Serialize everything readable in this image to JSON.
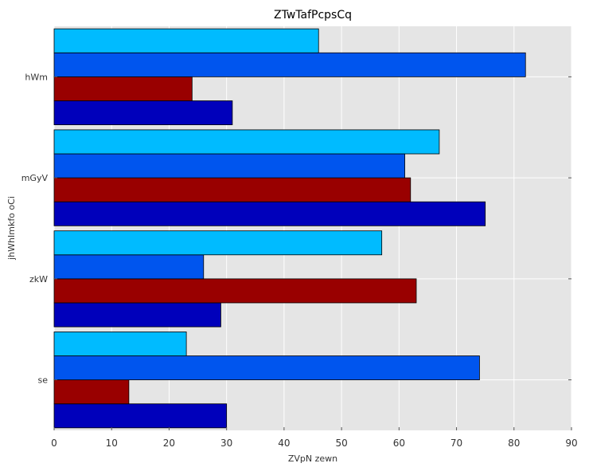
{
  "chart_data": {
    "type": "bar",
    "orientation": "horizontal",
    "title": "ZTwTafPcpsCq",
    "xlabel": "ZVpN zewn",
    "ylabel": "jhWhImkfo oCi",
    "categories": [
      "se",
      "zkW",
      "mGyV",
      "hWm"
    ],
    "xlim": [
      0,
      90
    ],
    "xticks": [
      0,
      10,
      20,
      30,
      40,
      50,
      60,
      70,
      80,
      90
    ],
    "grid": true,
    "legend": "none",
    "series": [
      {
        "values": [
          30,
          29,
          75,
          31
        ],
        "color": "#0000bb"
      },
      {
        "values": [
          13,
          63,
          62,
          24
        ],
        "color": "#990000"
      },
      {
        "values": [
          74,
          26,
          61,
          82
        ],
        "color": "#0055ee"
      },
      {
        "values": [
          23,
          57,
          67,
          46
        ],
        "color": "#00bbff"
      }
    ],
    "colors": {
      "plot_background": "#e5e5e5",
      "grid": "#ffffff",
      "bar_edge": "#000000"
    }
  }
}
